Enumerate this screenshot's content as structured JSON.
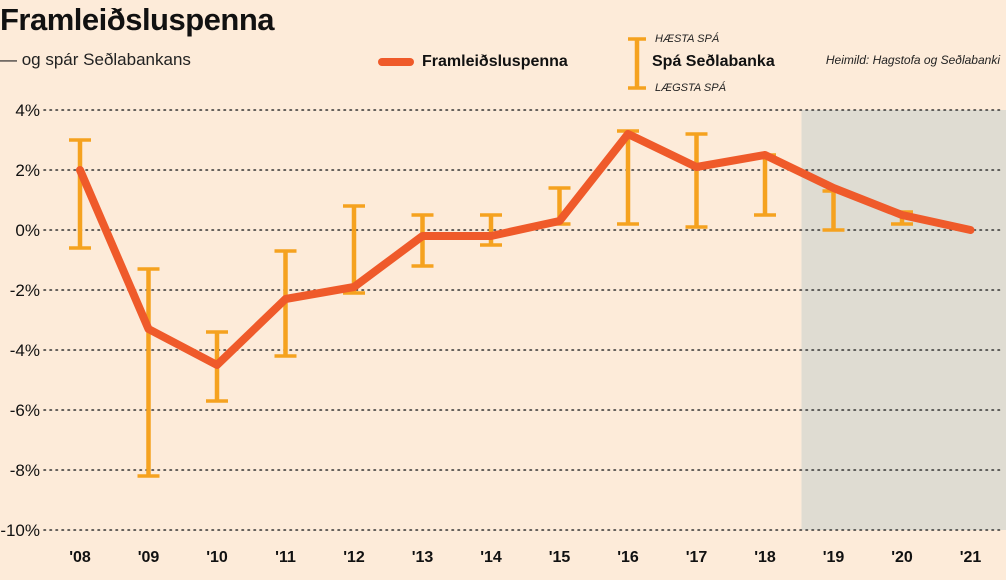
{
  "header": {
    "title": "Framleiðsluspenna",
    "subtitle": "— og spár Seðlabankans",
    "source": "Heimild: Hagstofa og Seðlabanki"
  },
  "legend": {
    "line_label": "Framleiðsluspenna",
    "forecast_label": "Spá Seðlabanka",
    "high_label": "HÆSTA SPÁ",
    "low_label": "LÆGSTA SPÁ"
  },
  "colors": {
    "background": "#fdebd9",
    "line": "#ef5a2a",
    "forecast": "#f5a21f",
    "shade": "#dfdcd2",
    "grid": "#333333"
  },
  "chart_data": {
    "type": "line",
    "categories": [
      "'08",
      "'09",
      "'10",
      "'11",
      "'12",
      "'13",
      "'14",
      "'15",
      "'16",
      "'17",
      "'18",
      "'19",
      "'20",
      "'21"
    ],
    "series": [
      {
        "name": "Framleiðsluspenna",
        "values": [
          2.0,
          -3.3,
          -4.5,
          -2.3,
          -1.9,
          -0.2,
          -0.2,
          0.3,
          3.2,
          2.1,
          2.5,
          1.4,
          0.5,
          0.0
        ]
      },
      {
        "name": "Spá Seðlabanka",
        "high": [
          3.0,
          -1.3,
          -3.4,
          -0.7,
          0.8,
          0.5,
          0.5,
          1.4,
          3.3,
          3.2,
          2.5,
          1.3,
          0.6,
          null
        ],
        "low": [
          -0.6,
          -8.2,
          -5.7,
          -4.2,
          -2.1,
          -1.2,
          -0.5,
          0.2,
          0.2,
          0.1,
          0.5,
          0.0,
          0.2,
          null
        ]
      }
    ],
    "yticks": [
      "4%",
      "2%",
      "0%",
      "-2%",
      "-4%",
      "-6%",
      "-8%",
      "-10%"
    ],
    "ylim": [
      -10,
      4
    ],
    "grid": "horizontal dotted",
    "shaded_from_category": "'19"
  }
}
